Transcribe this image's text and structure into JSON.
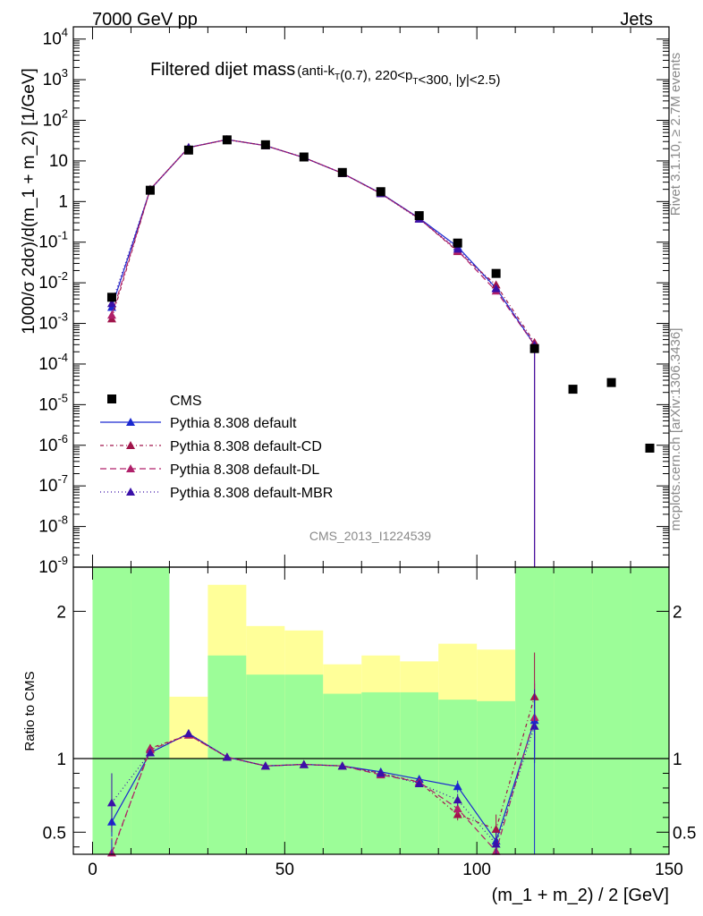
{
  "header": {
    "left_label": "7000 GeV pp",
    "right_label": "Jets"
  },
  "side_labels": {
    "rivet": "Rivet 3.1.10, ≥ 2.7M events",
    "mcplots": "mcplots.cern.ch [arXiv:1306.3436]"
  },
  "chart_data": {
    "type": "line",
    "title": "Filtered dijet mass",
    "title_suffix": "(anti-k_T(0.7), 220<p_T<300, |y|<2.5)",
    "analysis_id": "CMS_2013_I1224539",
    "xlabel": "(m_1 + m_2) / 2 [GeV]",
    "ylabel_main": "1000/σ 2dσ)/d(m_1 + m_2) [1/GeV]",
    "ylabel_ratio": "Ratio to CMS",
    "xlim": [
      -5,
      150
    ],
    "ylim_main": [
      1e-09,
      20000
    ],
    "ylim_ratio": [
      0.35,
      2.3
    ],
    "yscale_main": "log",
    "x_ticks": [
      0,
      50,
      100,
      150
    ],
    "ratio_ticks": [
      0.5,
      1,
      2
    ],
    "legend_position": "bottom-left",
    "bin_edges": [
      0,
      10,
      20,
      30,
      40,
      50,
      60,
      70,
      80,
      90,
      100,
      110,
      120,
      130,
      140,
      150
    ],
    "x": [
      5,
      15,
      25,
      35,
      45,
      55,
      65,
      75,
      85,
      95,
      105,
      115,
      125,
      135,
      145
    ],
    "cms_data": [
      0.0044,
      1.9,
      18.5,
      33,
      25,
      12.5,
      5.2,
      1.75,
      0.45,
      0.095,
      0.017,
      0.00024,
      2.4e-05,
      3.5e-05,
      8.5e-07
    ],
    "cms_band_inner_lo": [
      0.35,
      0.35,
      0.35,
      0.35,
      0.35,
      0.35,
      0.35,
      0.35,
      0.35,
      0.35,
      0.35,
      0.35,
      0.35,
      0.35,
      0.35
    ],
    "cms_band_inner_hi": [
      2.3,
      2.3,
      1.0,
      1.7,
      1.57,
      1.57,
      1.44,
      1.45,
      1.45,
      1.4,
      1.39,
      2.3,
      2.3,
      2.3,
      2.3
    ],
    "cms_band_outer_lo": [
      0.35,
      0.35,
      0.56,
      0.35,
      0.35,
      0.35,
      0.35,
      0.35,
      0.35,
      0.35,
      0.35,
      0.35,
      0.35,
      0.35,
      0.35
    ],
    "cms_band_outer_hi": [
      2.3,
      2.08,
      1.42,
      2.18,
      1.9,
      1.87,
      1.64,
      1.7,
      1.66,
      1.78,
      1.74,
      2.3,
      2.3,
      2.3,
      2.3
    ],
    "series": [
      {
        "name": "Pythia 8.308 default",
        "color": "#1a28d0",
        "dash": "solid",
        "x": [
          5,
          15,
          25,
          35,
          45,
          55,
          65,
          75,
          85,
          95,
          105,
          115
        ],
        "values": [
          0.0025,
          1.97,
          21.5,
          33.5,
          23.8,
          12.1,
          4.97,
          1.6,
          0.39,
          0.077,
          0.0074,
          0.0003
        ],
        "ratio": [
          0.57,
          1.04,
          1.17,
          1.01,
          0.95,
          0.96,
          0.95,
          0.91,
          0.86,
          0.81,
          0.44,
          1.26
        ],
        "ratio_err": [
          0.1,
          0.01,
          0.01,
          0.005,
          0.005,
          0.005,
          0.008,
          0.012,
          0.02,
          0.04,
          0.08,
          0.25
        ]
      },
      {
        "name": "Pythia 8.308 default-CD",
        "color": "#a0144a",
        "dash": "4,3,1,3",
        "x": [
          5,
          15,
          25,
          35,
          45,
          55,
          65,
          75,
          85,
          95,
          105,
          115
        ],
        "values": [
          0.0013,
          2.0,
          21.3,
          33.5,
          23.8,
          12.1,
          4.97,
          1.57,
          0.38,
          0.059,
          0.0089,
          0.00034
        ],
        "ratio": [
          0.3,
          1.07,
          1.16,
          1.01,
          0.95,
          0.96,
          0.95,
          0.9,
          0.84,
          0.62,
          0.52,
          1.42
        ],
        "ratio_err": [
          0.1,
          0.01,
          0.01,
          0.005,
          0.005,
          0.005,
          0.008,
          0.012,
          0.02,
          0.04,
          0.1,
          0.3
        ]
      },
      {
        "name": "Pythia 8.308 default-DL",
        "color": "#b0206a",
        "dash": "7,4",
        "x": [
          5,
          15,
          25,
          35,
          45,
          55,
          65,
          75,
          85,
          95,
          105,
          115
        ],
        "values": [
          0.0016,
          2.0,
          21.4,
          33.5,
          23.8,
          12.1,
          4.97,
          1.57,
          0.38,
          0.062,
          0.0063,
          0.0003
        ],
        "ratio": [
          0.36,
          1.06,
          1.16,
          1.01,
          0.95,
          0.96,
          0.95,
          0.89,
          0.84,
          0.66,
          0.37,
          1.28
        ],
        "ratio_err": [
          0.1,
          0.01,
          0.01,
          0.005,
          0.005,
          0.005,
          0.008,
          0.012,
          0.02,
          0.04,
          0.08,
          0.25
        ]
      },
      {
        "name": "Pythia 8.308 default-MBR",
        "color": "#3a10a8",
        "dash": "1,3",
        "x": [
          5,
          15,
          25,
          35,
          45,
          55,
          65,
          75,
          85,
          95,
          105,
          115
        ],
        "values": [
          0.0031,
          1.96,
          21.5,
          33.5,
          23.8,
          12.1,
          4.97,
          1.57,
          0.37,
          0.068,
          0.0072,
          0.00029
        ],
        "ratio": [
          0.7,
          1.04,
          1.17,
          1.01,
          0.95,
          0.96,
          0.95,
          0.9,
          0.83,
          0.72,
          0.42,
          1.22
        ],
        "ratio_err": [
          0.2,
          0.01,
          0.01,
          0.005,
          0.005,
          0.005,
          0.008,
          0.012,
          0.02,
          0.04,
          0.08,
          0.25
        ]
      }
    ],
    "data_legend": "CMS"
  }
}
